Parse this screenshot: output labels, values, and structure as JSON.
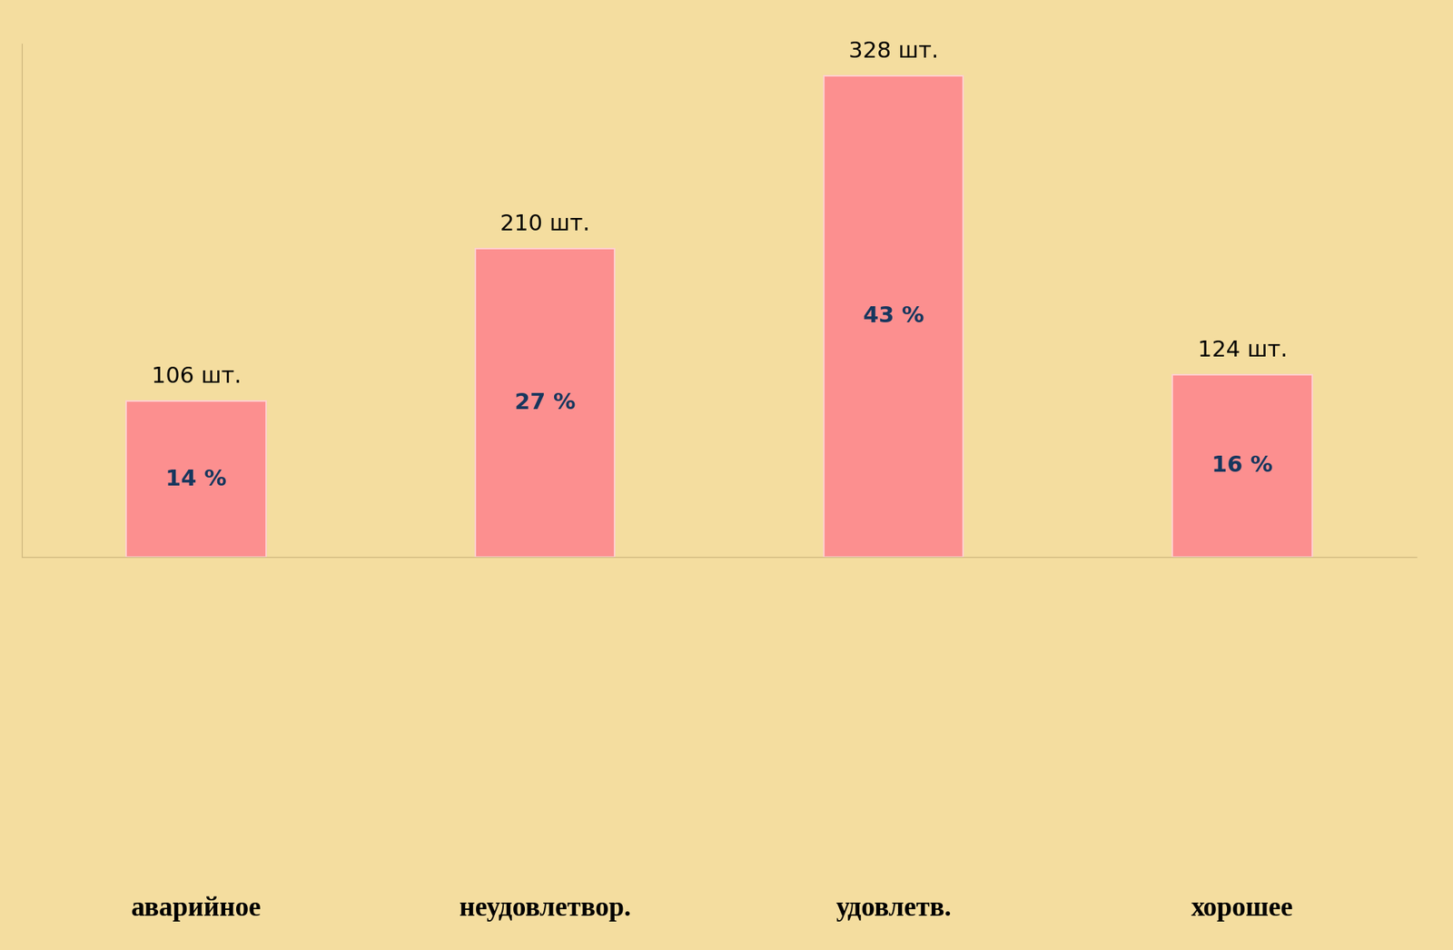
{
  "chart_data": {
    "type": "bar",
    "categories": [
      "аварийное",
      "неудовлетвор.",
      "удовлетв.",
      "хорошее"
    ],
    "values": [
      106,
      210,
      328,
      124
    ],
    "value_labels": [
      "106 шт.",
      "210 шт.",
      "328 шт.",
      "124 шт."
    ],
    "percent_values": [
      14,
      27,
      43,
      16
    ],
    "percent_labels": [
      "14 %",
      "27 %",
      "43 %",
      "16 %"
    ],
    "color": "#fc8f8f",
    "ylim": [
      0,
      350
    ],
    "yticks": [],
    "data_labels": true,
    "tick_labels": "x",
    "grid": false
  }
}
